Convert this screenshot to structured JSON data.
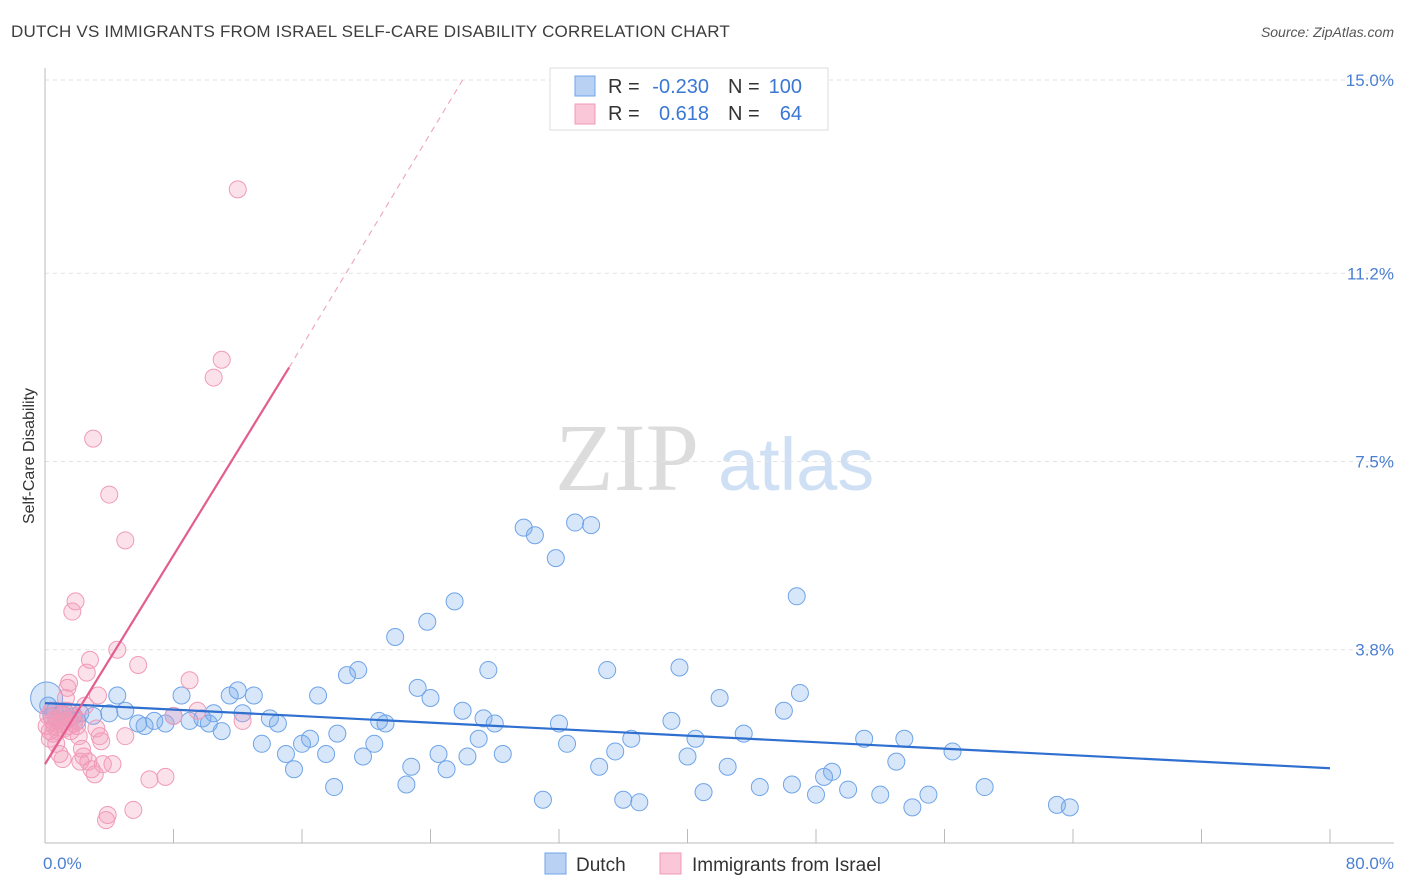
{
  "title": "DUTCH VS IMMIGRANTS FROM ISRAEL SELF-CARE DISABILITY CORRELATION CHART",
  "source": "Source: ZipAtlas.com",
  "watermark": {
    "zip": "ZIP",
    "atlas": "atlas"
  },
  "colors": {
    "dutch": "#6fa4e8",
    "dutch_line": "#2e6fd0",
    "israel": "#f19ab8",
    "israel_line": "#e35d8f",
    "tick_text": "#4a7fd1"
  },
  "legend": {
    "rows": [
      {
        "r_label": "R =",
        "r_value": "-0.230",
        "n_label": "N =",
        "n_value": "100"
      },
      {
        "r_label": "R =",
        "r_value": "0.618",
        "n_label": "N =",
        "n_value": "64"
      }
    ]
  },
  "chart_data": {
    "type": "scatter",
    "title": "DUTCH VS IMMIGRANTS FROM ISRAEL SELF-CARE DISABILITY CORRELATION CHART",
    "xlabel": "",
    "ylabel": "Self-Care Disability",
    "xlim": [
      0,
      80
    ],
    "ylim": [
      0,
      15
    ],
    "x_tick_labels": [
      "0.0%",
      "80.0%"
    ],
    "y_ticks": [
      3.8,
      7.5,
      11.2,
      15.0
    ],
    "y_tick_labels": [
      "3.8%",
      "7.5%",
      "11.2%",
      "15.0%"
    ],
    "grid": true,
    "legend_position": "top-center",
    "series": [
      {
        "name": "Dutch",
        "color": "#6fa4e8",
        "trend": {
          "x0": 0,
          "y0": 2.75,
          "x1": 80,
          "y1": 1.47
        },
        "points": [
          [
            0.2,
            2.7
          ],
          [
            0.4,
            2.5
          ],
          [
            0.6,
            2.6
          ],
          [
            0.8,
            2.4
          ],
          [
            1.0,
            2.55
          ],
          [
            1.2,
            2.6
          ],
          [
            1.5,
            2.45
          ],
          [
            1.8,
            2.5
          ],
          [
            2.0,
            2.4
          ],
          [
            2.2,
            2.55
          ],
          [
            3.0,
            2.5
          ],
          [
            4.5,
            2.9
          ],
          [
            4.0,
            2.55
          ],
          [
            5.0,
            2.6
          ],
          [
            5.8,
            2.35
          ],
          [
            6.2,
            2.3
          ],
          [
            6.8,
            2.4
          ],
          [
            7.5,
            2.35
          ],
          [
            8.0,
            2.5
          ],
          [
            8.5,
            2.9
          ],
          [
            9.0,
            2.4
          ],
          [
            9.8,
            2.45
          ],
          [
            10.2,
            2.35
          ],
          [
            10.5,
            2.55
          ],
          [
            11.0,
            2.2
          ],
          [
            11.5,
            2.9
          ],
          [
            12.0,
            3.0
          ],
          [
            12.3,
            2.55
          ],
          [
            13.0,
            2.9
          ],
          [
            13.5,
            1.95
          ],
          [
            14.0,
            2.45
          ],
          [
            14.5,
            2.35
          ],
          [
            15.0,
            1.75
          ],
          [
            15.5,
            1.45
          ],
          [
            16.0,
            1.95
          ],
          [
            16.5,
            2.05
          ],
          [
            17.0,
            2.9
          ],
          [
            17.5,
            1.75
          ],
          [
            18.0,
            1.1
          ],
          [
            18.2,
            2.15
          ],
          [
            18.8,
            3.3
          ],
          [
            19.5,
            3.4
          ],
          [
            19.8,
            1.7
          ],
          [
            20.5,
            1.95
          ],
          [
            20.8,
            2.4
          ],
          [
            21.2,
            2.35
          ],
          [
            21.8,
            4.05
          ],
          [
            22.5,
            1.15
          ],
          [
            22.8,
            1.5
          ],
          [
            23.2,
            3.05
          ],
          [
            23.8,
            4.35
          ],
          [
            24.0,
            2.85
          ],
          [
            24.5,
            1.75
          ],
          [
            25.0,
            1.45
          ],
          [
            25.5,
            4.75
          ],
          [
            26.0,
            2.6
          ],
          [
            26.3,
            1.7
          ],
          [
            27.0,
            2.05
          ],
          [
            27.3,
            2.45
          ],
          [
            27.6,
            3.4
          ],
          [
            28.0,
            2.35
          ],
          [
            28.5,
            1.75
          ],
          [
            29.8,
            6.2
          ],
          [
            30.5,
            6.05
          ],
          [
            31.0,
            0.85
          ],
          [
            31.8,
            5.6
          ],
          [
            32.0,
            2.35
          ],
          [
            32.5,
            1.95
          ],
          [
            33.0,
            6.3
          ],
          [
            34.0,
            6.25
          ],
          [
            34.5,
            1.5
          ],
          [
            35.0,
            3.4
          ],
          [
            35.5,
            1.8
          ],
          [
            36.0,
            0.85
          ],
          [
            36.5,
            2.05
          ],
          [
            37.0,
            0.8
          ],
          [
            39.0,
            2.4
          ],
          [
            39.5,
            3.45
          ],
          [
            40.0,
            1.7
          ],
          [
            40.5,
            2.05
          ],
          [
            41.0,
            1.0
          ],
          [
            42.0,
            2.85
          ],
          [
            42.5,
            1.5
          ],
          [
            43.5,
            2.15
          ],
          [
            44.5,
            1.1
          ],
          [
            46.0,
            2.6
          ],
          [
            46.5,
            1.15
          ],
          [
            46.8,
            4.85
          ],
          [
            47.0,
            2.95
          ],
          [
            48.0,
            0.95
          ],
          [
            48.5,
            1.3
          ],
          [
            49.0,
            1.4
          ],
          [
            50.0,
            1.05
          ],
          [
            51.0,
            2.05
          ],
          [
            52.0,
            0.95
          ],
          [
            53.0,
            1.6
          ],
          [
            53.5,
            2.05
          ],
          [
            54.0,
            0.7
          ],
          [
            55.0,
            0.95
          ],
          [
            56.5,
            1.8
          ],
          [
            58.5,
            1.1
          ],
          [
            63.0,
            0.75
          ],
          [
            63.8,
            0.7
          ]
        ]
      },
      {
        "name": "Immigrants from Israel",
        "color": "#f19ab8",
        "trend": {
          "x0": 0,
          "y0": 1.55,
          "x1": 15.2,
          "y1": 9.35,
          "dash_x1": 26,
          "dash_y1": 15.0
        },
        "points": [
          [
            0.1,
            2.3
          ],
          [
            0.2,
            2.5
          ],
          [
            0.3,
            2.2
          ],
          [
            0.4,
            2.6
          ],
          [
            0.5,
            2.4
          ],
          [
            0.6,
            2.3
          ],
          [
            0.7,
            2.45
          ],
          [
            0.8,
            2.2
          ],
          [
            0.9,
            2.55
          ],
          [
            1.0,
            2.35
          ],
          [
            1.1,
            2.5
          ],
          [
            1.2,
            2.25
          ],
          [
            1.3,
            2.4
          ],
          [
            1.4,
            2.6
          ],
          [
            1.5,
            2.3
          ],
          [
            1.6,
            2.2
          ],
          [
            1.7,
            2.5
          ],
          [
            1.8,
            2.35
          ],
          [
            1.9,
            2.45
          ],
          [
            2.0,
            2.3
          ],
          [
            0.3,
            2.05
          ],
          [
            0.5,
            2.15
          ],
          [
            0.7,
            1.95
          ],
          [
            0.9,
            1.75
          ],
          [
            1.1,
            1.65
          ],
          [
            1.3,
            2.85
          ],
          [
            1.4,
            3.05
          ],
          [
            1.5,
            3.15
          ],
          [
            1.7,
            4.55
          ],
          [
            1.9,
            4.75
          ],
          [
            2.1,
            2.1
          ],
          [
            2.2,
            1.6
          ],
          [
            2.3,
            1.85
          ],
          [
            2.4,
            1.7
          ],
          [
            2.5,
            2.7
          ],
          [
            2.6,
            3.35
          ],
          [
            2.7,
            1.6
          ],
          [
            2.8,
            3.6
          ],
          [
            2.9,
            1.45
          ],
          [
            3.0,
            7.95
          ],
          [
            3.1,
            1.35
          ],
          [
            3.2,
            2.25
          ],
          [
            3.3,
            2.9
          ],
          [
            3.4,
            2.1
          ],
          [
            3.5,
            2.0
          ],
          [
            3.6,
            1.55
          ],
          [
            3.8,
            0.45
          ],
          [
            3.9,
            0.55
          ],
          [
            4.0,
            6.85
          ],
          [
            4.2,
            1.55
          ],
          [
            4.5,
            3.8
          ],
          [
            5.0,
            2.1
          ],
          [
            5.0,
            5.95
          ],
          [
            5.5,
            0.65
          ],
          [
            5.8,
            3.5
          ],
          [
            6.5,
            1.25
          ],
          [
            7.5,
            1.3
          ],
          [
            8.0,
            2.5
          ],
          [
            9.0,
            3.2
          ],
          [
            9.5,
            2.6
          ],
          [
            10.5,
            9.15
          ],
          [
            11.0,
            9.5
          ],
          [
            12.0,
            12.85
          ],
          [
            12.3,
            2.4
          ]
        ]
      }
    ]
  },
  "bottom_legend": {
    "dutch": "Dutch",
    "israel": "Immigrants from Israel"
  }
}
